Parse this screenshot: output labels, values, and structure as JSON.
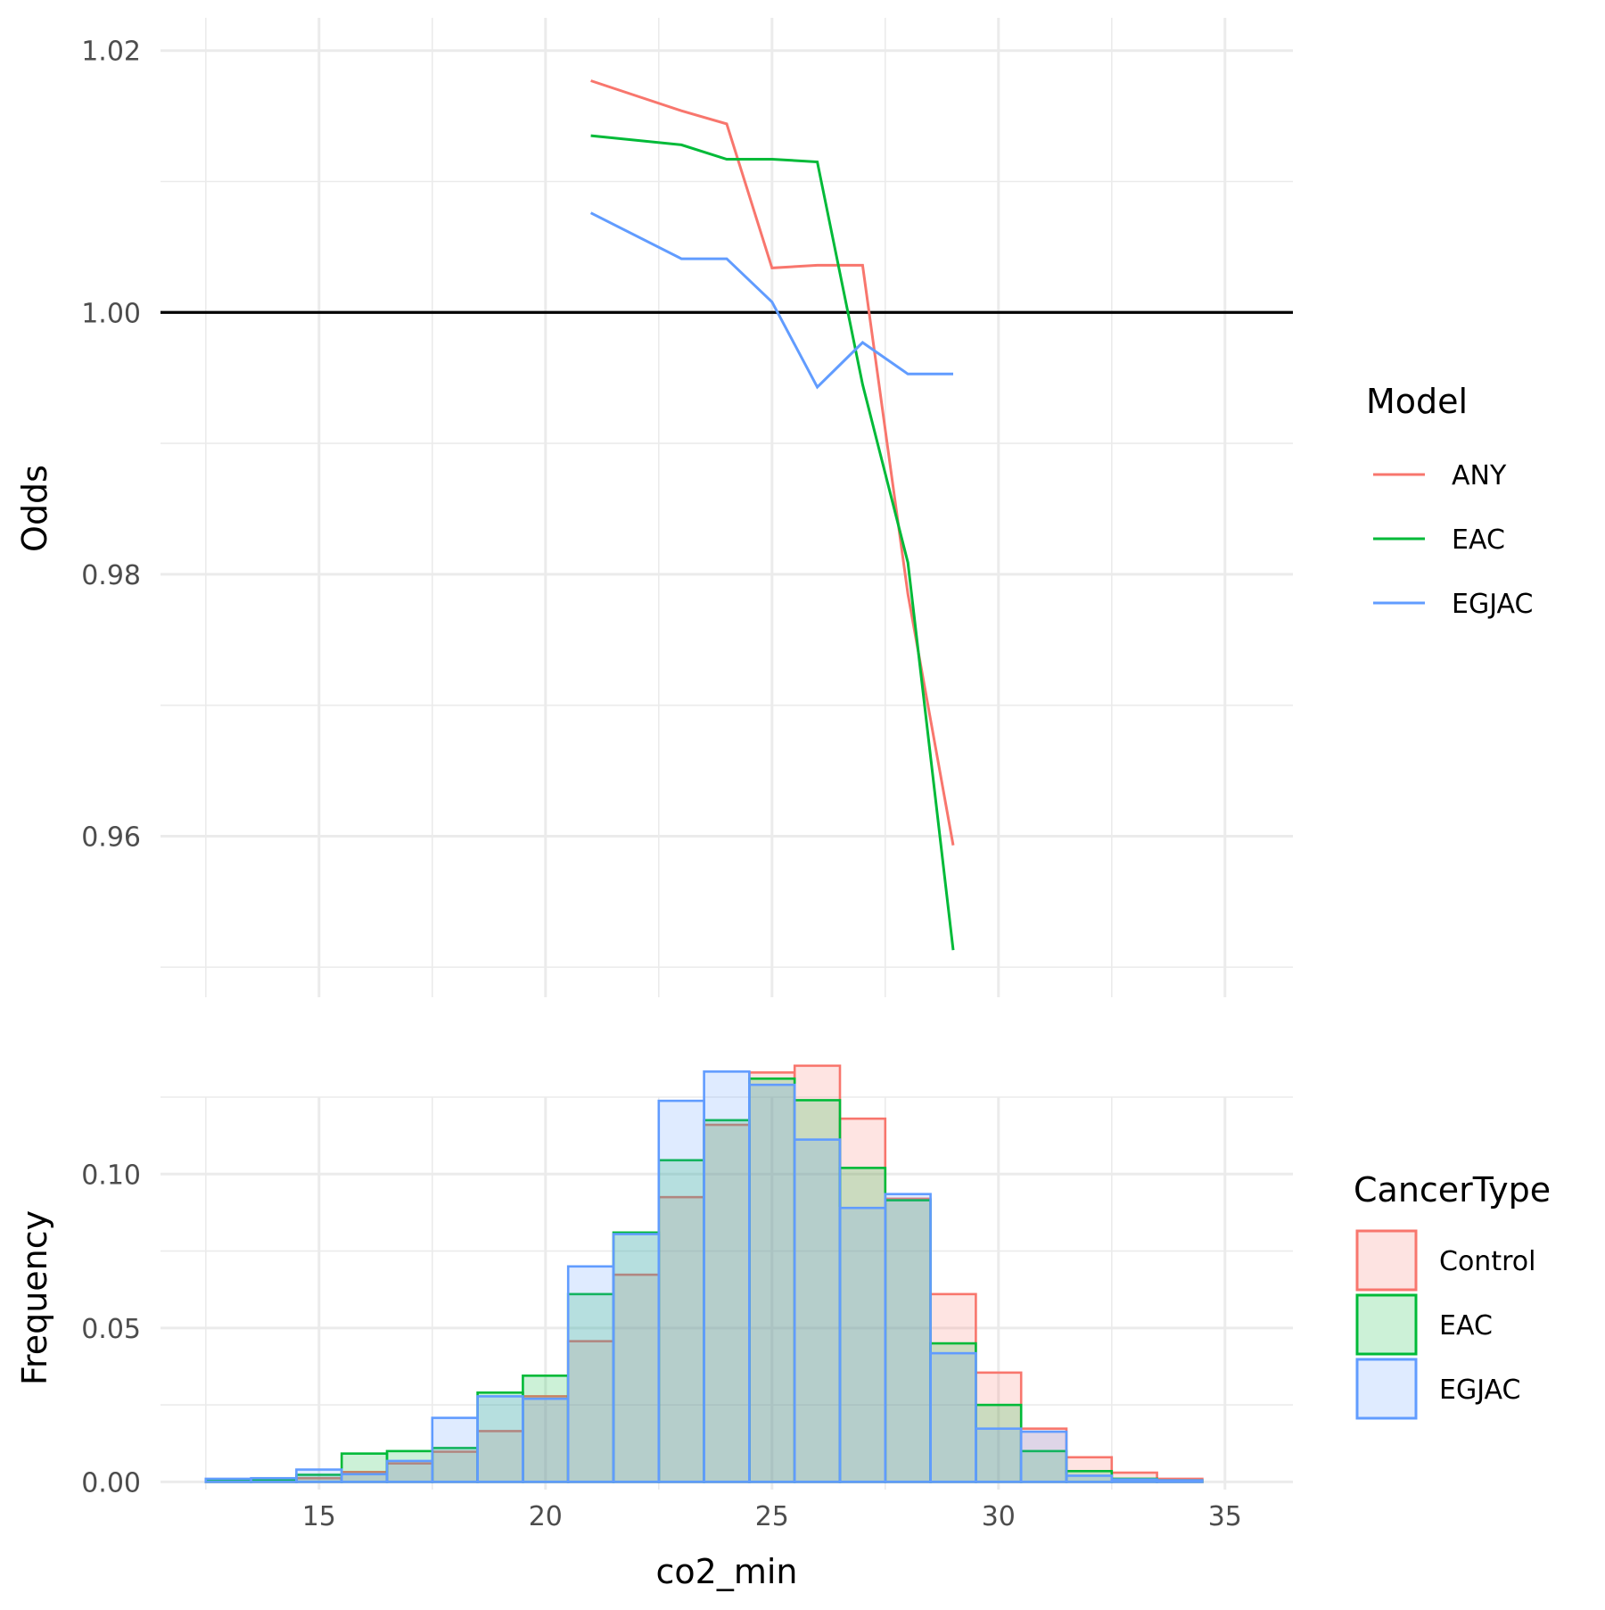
{
  "chart_data": [
    {
      "type": "line",
      "xlabel": "",
      "ylabel": "Odds",
      "xlim": [
        11.5,
        36.5
      ],
      "ylim": [
        0.9477,
        1.0225
      ],
      "x_ticks": [
        15,
        20,
        25,
        30,
        35
      ],
      "y_ticks": [
        0.96,
        0.98,
        1.0,
        1.02
      ],
      "y_tick_labels": [
        "0.96",
        "0.98",
        "1.00",
        "1.02"
      ],
      "reference_line": {
        "y": 1.0,
        "color": "#000000"
      },
      "grid": true,
      "x_tick_labels_shown": false,
      "legend": {
        "title": "Model",
        "placement": "right"
      },
      "series": [
        {
          "name": "ANY",
          "color": "#F8766D",
          "x": [
            21,
            23,
            24,
            25,
            26,
            27,
            28,
            29
          ],
          "y": [
            1.0177,
            1.0154,
            1.0144,
            1.0034,
            1.0036,
            1.0036,
            0.9785,
            0.9593
          ]
        },
        {
          "name": "EAC",
          "color": "#00BA38",
          "x": [
            21,
            23,
            24,
            25,
            26,
            27,
            28,
            29
          ],
          "y": [
            1.0135,
            1.0128,
            1.0117,
            1.0117,
            1.0115,
            0.9945,
            0.9809,
            0.9513
          ]
        },
        {
          "name": "EGJAC",
          "color": "#619CFF",
          "x": [
            21,
            23,
            24,
            25,
            26,
            27,
            28,
            29
          ],
          "y": [
            1.0076,
            1.0041,
            1.0041,
            1.0008,
            0.9943,
            0.9977,
            0.9953,
            0.9953
          ]
        }
      ]
    },
    {
      "type": "bar",
      "subtype": "histogram",
      "xlabel": "co2_min",
      "ylabel": "Frequency",
      "xlim": [
        11.5,
        36.5
      ],
      "ylim": [
        -0.0025,
        0.125
      ],
      "x_ticks": [
        15,
        20,
        25,
        30,
        35
      ],
      "x_tick_labels": [
        "15",
        "20",
        "25",
        "30",
        "35"
      ],
      "y_ticks": [
        0.0,
        0.05,
        0.1
      ],
      "y_tick_labels": [
        "0.00",
        "0.05",
        "0.10"
      ],
      "grid": true,
      "legend": {
        "title": "CancerType",
        "placement": "right"
      },
      "bin_width": 1,
      "bin_centers": [
        13,
        14,
        15,
        16,
        17,
        18,
        19,
        20,
        21,
        22,
        23,
        24,
        25,
        26,
        27,
        28,
        29,
        30,
        31,
        32,
        33,
        34
      ],
      "series": [
        {
          "name": "Control",
          "color": "#F8766D",
          "fill": "#FDE3E1",
          "values": [
            0.0005,
            0.0007,
            0.0012,
            0.0032,
            0.006,
            0.0098,
            0.0165,
            0.0278,
            0.0457,
            0.0673,
            0.0925,
            0.116,
            0.133,
            0.1352,
            0.118,
            0.092,
            0.061,
            0.0355,
            0.0173,
            0.008,
            0.003,
            0.001
          ]
        },
        {
          "name": "EAC",
          "color": "#00BA38",
          "fill": "#CCF1D7",
          "values": [
            0.0005,
            0.0007,
            0.0023,
            0.0092,
            0.01,
            0.011,
            0.029,
            0.0345,
            0.061,
            0.081,
            0.1045,
            0.1175,
            0.131,
            0.124,
            0.102,
            0.0915,
            0.045,
            0.025,
            0.01,
            0.0035,
            0.001,
            0.0005
          ]
        },
        {
          "name": "EGJAC",
          "color": "#619CFF",
          "fill": "#DFEBFF",
          "values": [
            0.001,
            0.0012,
            0.004,
            0.0025,
            0.0068,
            0.0208,
            0.0278,
            0.027,
            0.07,
            0.0805,
            0.1238,
            0.1333,
            0.129,
            0.1112,
            0.089,
            0.0935,
            0.0418,
            0.0173,
            0.0163,
            0.002,
            0.0008,
            0.0005
          ]
        }
      ]
    }
  ]
}
